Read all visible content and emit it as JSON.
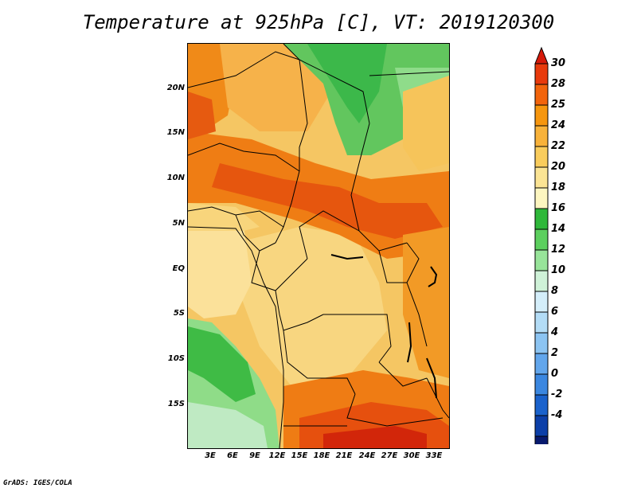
{
  "title": "Temperature at 925hPa [C], VT: 2019120300",
  "credit": "GrADS: IGES/COLA",
  "map": {
    "lat_labels": [
      "20N",
      "15N",
      "10N",
      "5N",
      "EQ",
      "5S",
      "10S",
      "15S"
    ],
    "lon_labels": [
      "3E",
      "6E",
      "9E",
      "12E",
      "15E",
      "18E",
      "21E",
      "24E",
      "27E",
      "30E",
      "33E"
    ]
  },
  "colorbar": {
    "labels": [
      "30",
      "28",
      "25",
      "24",
      "22",
      "20",
      "18",
      "16",
      "14",
      "12",
      "10",
      "8",
      "6",
      "4",
      "2",
      "0",
      "-2",
      "-4"
    ],
    "colors": [
      "#d61a0a",
      "#e83a0c",
      "#f2640c",
      "#f6960e",
      "#f8b23a",
      "#f9cc5c",
      "#fbe494",
      "#fdf6c0",
      "#2fb83a",
      "#5ccf5e",
      "#98e49a",
      "#cff2d8",
      "#d4eefa",
      "#b3dcf6",
      "#8cc4f2",
      "#62a6ec",
      "#3b87e0",
      "#1a62cc",
      "#0c3fa8",
      "#081a6e",
      "#d7d4ef"
    ]
  }
}
